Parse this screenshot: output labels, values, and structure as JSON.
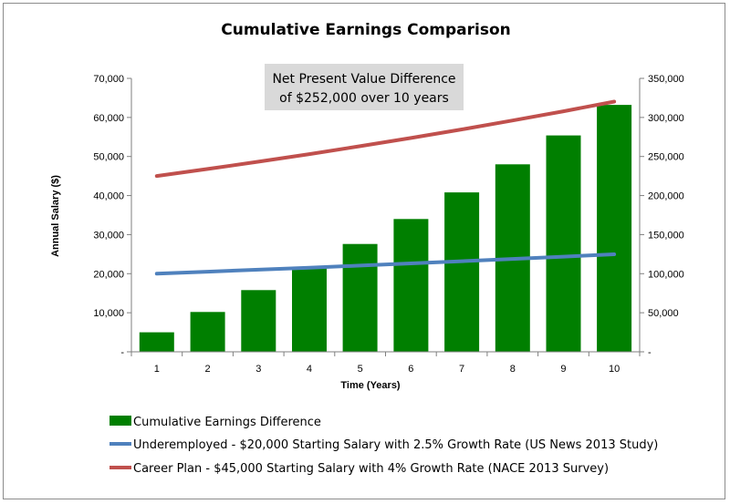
{
  "chart_data": {
    "type": "bar",
    "title": "Cumulative Earnings Comparison",
    "xlabel": "Time (Years)",
    "ylabel": "Annual Salary ($)",
    "categories": [
      "1",
      "2",
      "3",
      "4",
      "5",
      "6",
      "7",
      "8",
      "9",
      "10"
    ],
    "ylim": [
      0,
      70000
    ],
    "ylim_right": [
      0,
      350000
    ],
    "yticks_left": [
      "-",
      "10,000",
      "20,000",
      "30,000",
      "40,000",
      "50,000",
      "60,000",
      "70,000"
    ],
    "yticks_right": [
      "-",
      "50,000",
      "100,000",
      "150,000",
      "200,000",
      "250,000",
      "300,000",
      "350,000"
    ],
    "grid": false,
    "legend_position": "bottom",
    "series": [
      {
        "name": "Cumulative Earnings Difference",
        "type": "bar",
        "axis": "right",
        "color": "#007f00",
        "values": [
          25000,
          51000,
          79000,
          107000,
          138000,
          170000,
          204000,
          240000,
          277000,
          316000
        ]
      },
      {
        "name": "Underemployed - $20,000 Starting Salary with 2.5% Growth Rate (US News 2013 Study)",
        "type": "line",
        "axis": "left",
        "color": "#4f81bd",
        "values": [
          20000,
          20500,
          21013,
          21538,
          22076,
          22628,
          23194,
          23774,
          24368,
          24977
        ]
      },
      {
        "name": "Career Plan - $45,000 Starting Salary with 4% Growth Rate (NACE 2013 Survey)",
        "type": "line",
        "axis": "left",
        "color": "#c0504d",
        "values": [
          45000,
          46800,
          48672,
          50619,
          52644,
          54749,
          56939,
          59217,
          61586,
          64049
        ]
      }
    ],
    "annotation": {
      "line1": "Net Present Value Difference",
      "line2": "of $252,000 over 10 years",
      "background": "#d9d9d9"
    }
  }
}
